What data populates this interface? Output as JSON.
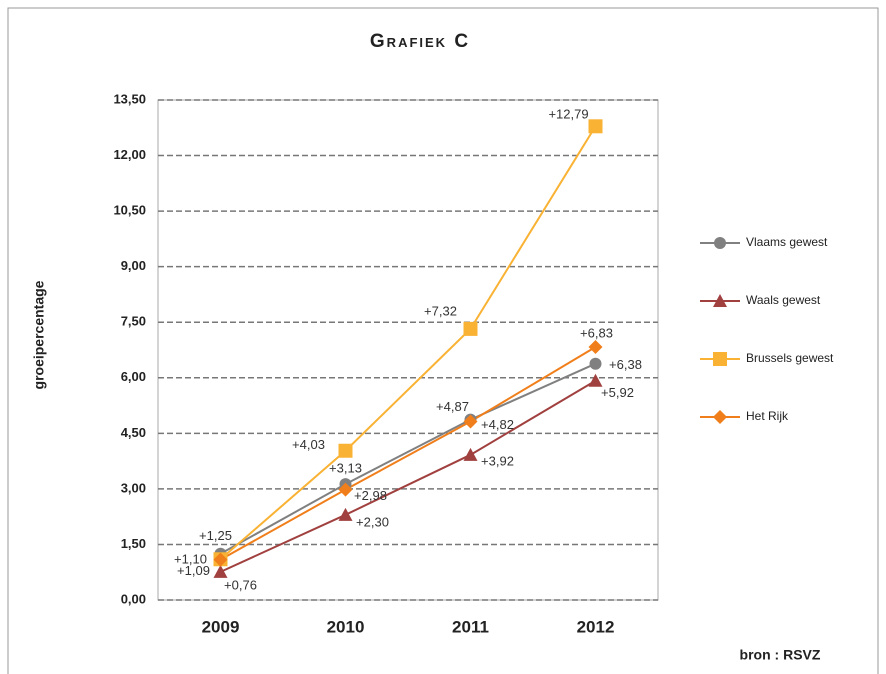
{
  "chart_data": {
    "type": "line",
    "title": "Grafiek C",
    "y_label": "groeipercentage",
    "source": "bron : RSVZ",
    "categories": [
      "2009",
      "2010",
      "2011",
      "2012"
    ],
    "series": [
      {
        "name": "Vlaams gewest",
        "color": "#808080",
        "marker": "circle",
        "values": [
          1.25,
          3.13,
          4.87,
          6.38
        ],
        "value_labels": [
          "+1,25",
          "+3,13",
          "+4,87",
          "+6,38"
        ]
      },
      {
        "name": "Waals gewest",
        "color": "#a0403f",
        "marker": "triangle",
        "values": [
          0.76,
          2.3,
          3.92,
          5.92
        ],
        "value_labels": [
          "+0,76",
          "+2,30",
          "+3,92",
          "+5,92"
        ]
      },
      {
        "name": "Brussels gewest",
        "color": "#f9b233",
        "marker": "square",
        "values": [
          1.1,
          4.03,
          7.32,
          12.79
        ],
        "value_labels": [
          "+1,10",
          "+4,03",
          "+7,32",
          "+12,79"
        ]
      },
      {
        "name": "Het Rijk",
        "color": "#f07f1b",
        "marker": "diamond",
        "values": [
          1.09,
          2.98,
          4.82,
          6.83
        ],
        "value_labels": [
          "+1,09",
          "+2,98",
          "+4,82",
          "+6,83"
        ]
      }
    ],
    "ylim": [
      0,
      13.5
    ],
    "yticks": [
      {
        "value": 0,
        "label": "0,00"
      },
      {
        "value": 1.5,
        "label": "1,50"
      },
      {
        "value": 3,
        "label": "3,00"
      },
      {
        "value": 4.5,
        "label": "4,50"
      },
      {
        "value": 6,
        "label": "6,00"
      },
      {
        "value": 7.5,
        "label": "7,50"
      },
      {
        "value": 9,
        "label": "9,00"
      },
      {
        "value": 10.5,
        "label": "10,50"
      },
      {
        "value": 12,
        "label": "12,00"
      },
      {
        "value": 13.5,
        "label": "13,50"
      }
    ],
    "grid": true,
    "legend": "right"
  }
}
